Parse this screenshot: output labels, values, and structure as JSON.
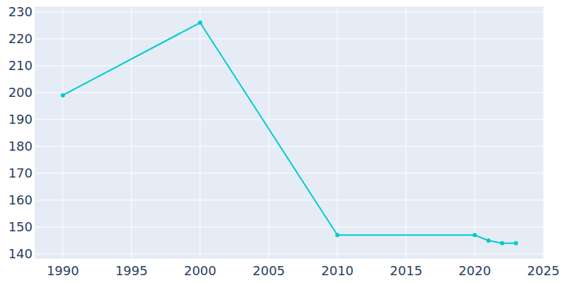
{
  "chart_data": {
    "type": "line",
    "x": [
      1990,
      2000,
      2010,
      2020,
      2021,
      2022,
      2023
    ],
    "values": [
      199,
      226,
      147,
      147,
      145,
      144,
      144
    ],
    "color": "#00cccc",
    "marker": "circle",
    "xlim": [
      1988,
      2025
    ],
    "xticks": [
      1990,
      1995,
      2000,
      2005,
      2010,
      2015,
      2020,
      2025
    ],
    "ylim": [
      138.4,
      231.8
    ],
    "yticks": [
      140,
      150,
      160,
      170,
      180,
      190,
      200,
      210,
      220,
      230
    ],
    "grid": true
  }
}
